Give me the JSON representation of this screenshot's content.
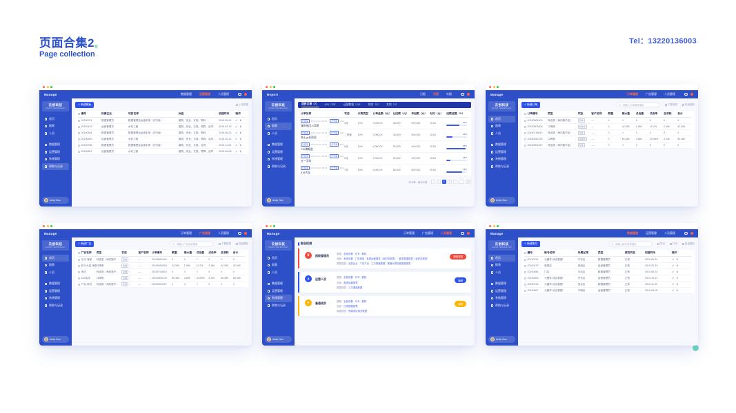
{
  "page": {
    "title": "页面合集2",
    "period": "。",
    "subtitle": "Page collection",
    "tel": "Tel：13220136003"
  },
  "shared": {
    "logo_name": "云创科技",
    "logo_sub": "CLOUD TECHNOLOGY",
    "sidebar": [
      "首页",
      "报表",
      "人员",
      "数据管理",
      "运营管理",
      "系统管理",
      "帮助与记录"
    ],
    "user": "Andy Guo",
    "colors": {
      "primary_blue": "#2d4fc8",
      "subtab_blue": "#2136a8",
      "accent_orange": "#ff6a45",
      "link_blue": "#3d5be0",
      "teal": "#6fd6c4",
      "role_red": "#f5483d",
      "role_blue": "#2f54eb",
      "role_yellow": "#ffb400"
    }
  },
  "w1": {
    "title": "Manage",
    "nav": [
      "数据管理",
      "运营管理",
      "人员管理"
    ],
    "new_btn": "新建模板",
    "upload_link": "上传数据",
    "columns": [
      "编号",
      "所属企业",
      "项目名称",
      "标签",
      "创建时间",
      "操作"
    ],
    "rows": [
      [
        "20190374",
        "数据管理员",
        "数据管理及运维手册（试行版）",
        "建筑、安全、文档、物料",
        "2019-05-24"
      ],
      [
        "20190479",
        "运营管理员",
        "水利工程",
        "建筑、安全、文档、预算、合同、自检",
        "2019-02-19"
      ],
      [
        "20190584",
        "数据管理员",
        "数据管理及运维手册（试行版）",
        "建筑、安全、文档、物料",
        "2019-08-23"
      ],
      [
        "20190693",
        "运营管理员",
        "水利工程",
        "建筑、安全、文档、预算、合同、自检",
        "2019-10-12"
      ],
      [
        "20190758",
        "数据管理员",
        "数据管理及运维手册（试行版）",
        "建筑、安全、文档、合同",
        "2019-11-09"
      ],
      [
        "20190867",
        "运营管理员",
        "水利工程",
        "建筑、安全、文档、预算、合同",
        "2019-09-08"
      ]
    ]
  },
  "w2": {
    "title": "Report",
    "nav": [
      "日报",
      "月报",
      "年报"
    ],
    "subtabs": [
      "项目订单（7）",
      "KPI（23）",
      "运营数据（15）",
      "财务（5）",
      "其他（3）"
    ],
    "columns": [
      "订单名称",
      "状态",
      "计费类型",
      "订单金额（元）",
      "已回款（元）",
      "未回款（元）",
      "毛利（元）",
      "回款进度（%）"
    ],
    "rows": [
      {
        "tag1": "已结束",
        "date1": "2019-04-24 08:00",
        "tag2": "已开票",
        "date2": "2019-07-05 09:30",
        "name": "城市快闪-5月期",
        "period": "4月",
        "rate": "12%",
        "amount": "3,000.00",
        "received": "36,000",
        "unreceived": "900,000",
        "profit": "10.00",
        "pct": 62,
        "pct_label": "62%"
      },
      {
        "tag1": "已结束",
        "date1": "2019-04-24 08:00",
        "tag2": "已开票",
        "date2": "2019-07-05 09:30",
        "name": "海上云仓项目",
        "period": "二季度",
        "rate": "12%",
        "amount": "3,000.00",
        "received": "36,000",
        "unreceived": "900,000",
        "profit": "10.00",
        "pct": 28,
        "pct_label": "28%"
      },
      {
        "tag1": "已结束",
        "date1": "2019-05-12 08:00",
        "tag2": "已开票",
        "date2": "2019-07-18 09:30",
        "name": "715演唱会",
        "period": "6月",
        "rate": "10%",
        "amount": "2,000.00",
        "received": "26,000",
        "unreceived": "400,000",
        "profit": "15.00",
        "pct": 95,
        "pct_label": "95%"
      },
      {
        "tag1": "已结束",
        "date1": "2019-05-01 08:00",
        "tag2": "已开票",
        "date2": "2019-07-20 09:30",
        "name": "五一活动",
        "period": "5月",
        "rate": "10%",
        "amount": "2,000.00",
        "received": "26,000",
        "unreceived": "400,000",
        "profit": "15.00",
        "pct": 18,
        "pct_label": "18%"
      },
      {
        "tag1": "已结束",
        "date1": "2019-06-18 08:00",
        "tag2": "已开票",
        "date2": "2019-07-28 09:30",
        "name": "618大促",
        "period": "7月",
        "rate": "15%",
        "amount": "5,000.00",
        "received": "56,000",
        "unreceived": "600,000",
        "profit": "20.00",
        "pct": 78,
        "pct_label": "78%"
      }
    ],
    "pager": {
      "summary": "共45条，每页10条",
      "pages": [
        "‹",
        "1",
        "2",
        "3",
        "›"
      ],
      "go": "Go"
    }
  },
  "w3": {
    "title": "Manage",
    "nav": [
      "订单管理",
      "广告管理",
      "人员管理"
    ],
    "new_btn": "新建订单",
    "search_placeholder": "请输入订单编号搜索",
    "links": [
      "下载报表",
      "批量删除"
    ],
    "columns": [
      "订单编号",
      "类型",
      "状态",
      "客户名称",
      "数量",
      "展示量",
      "点击量",
      "点击率",
      "总消耗",
      "合计"
    ],
    "rows": [
      [
        "20190501003",
        "科技类（海内数不定）",
        "暂停",
        "—",
        "0",
        "0",
        "0",
        "0",
        "0",
        "0"
      ],
      [
        "20190603004",
        "口碑类",
        "投放中",
        "—",
        "0",
        "42,380",
        "1,580",
        "10.2%",
        "2,180",
        "42,380"
      ],
      [
        "20190718010",
        "科技类（海内数不定）",
        "暂停",
        "—",
        "0",
        "0",
        "0",
        "0",
        "0",
        "0"
      ],
      [
        "20190830125",
        "口碑类",
        "投放中",
        "—",
        "0",
        "80,380",
        "3,680",
        "20.55%",
        "4,130",
        "80,380"
      ],
      [
        "20190904167",
        "科技类（海内数不定）",
        "暂停",
        "—",
        "0",
        "0",
        "0",
        "0",
        "0",
        "0"
      ]
    ]
  },
  "w4": {
    "title": "Manage",
    "nav": [
      "订单管理",
      "广告管理",
      "人员管理"
    ],
    "new_btn": "新建广告",
    "search_placeholder": "请输入广告名称搜索",
    "links": [
      "下载报表",
      "批量删除"
    ],
    "columns": [
      "广告名称",
      "类型",
      "状态",
      "客户名称",
      "订单编号",
      "数量",
      "展示量",
      "点击量",
      "点击率",
      "总消耗",
      "合计"
    ],
    "rows": [
      [
        "五月-海报",
        "科技类（海内数不定）",
        "投放",
        "暂停",
        "—",
        "20190501003",
        "0",
        "0",
        "0",
        "0",
        "0"
      ],
      [
        "双12大促-海报",
        "口碑类",
        "投放",
        "暂停",
        "—",
        "20190603004",
        "42,380",
        "1,580",
        "10.2%",
        "2,180",
        "42,380"
      ],
      [
        "测试",
        "科技类（海内数不定）",
        "投放",
        "暂停",
        "—",
        "20190718010",
        "0",
        "0",
        "0",
        "0",
        "0"
      ],
      [
        "618活动",
        "口碑类",
        "投放",
        "暂停",
        "—",
        "20190830125",
        "80,380",
        "3,680",
        "20.55%",
        "4,130",
        "80,380"
      ],
      [
        "广告-测试",
        "科技类（海内数不定）",
        "投放",
        "暂停",
        "—",
        "20190904167",
        "0",
        "0",
        "0",
        "0",
        "0"
      ]
    ]
  },
  "w5": {
    "title": "Manage",
    "nav": [
      "订单管理",
      "广告管理",
      "人员管理"
    ],
    "section_title": "角色权限",
    "cards": [
      {
        "icon": "♛",
        "name": "超级管理员",
        "color": "#f5483d",
        "l1_label": "数据：",
        "l1": "全部查看 · 可写 · 删除",
        "l2_label": "页面：",
        "l2": "系统设置 · 广告投放 · 各类运营报表（含财务报表） · 各类数据报表（含财务报表）",
        "l3_label": "数据范围：",
        "l3": "全部企业 · 广告平台 · 三方渠道数据 · 渠道大屏及各数据报表",
        "btn": "删除权限"
      },
      {
        "icon": "▲",
        "name": "运营人员",
        "color": "#2f54eb",
        "l1_label": "数据：",
        "l1": "全部查看 · 可写 · 删除",
        "l2_label": "页面：",
        "l2": "各类运营报表",
        "l3_label": "数据范围：",
        "l3": "三方渠道数据",
        "btn": "编辑"
      },
      {
        "icon": "★",
        "name": "普通成员",
        "color": "#ffb400",
        "l1_label": "数据：",
        "l1": "全部查看 · 可写 · 删除",
        "l2_label": "页面：",
        "l2": "日常数据报表",
        "l3_label": "数据范围：",
        "l3": "所属项目相关数据",
        "btn": "编辑"
      }
    ]
  },
  "w6": {
    "title": "Manage",
    "nav": [
      "数据管理",
      "运营管理",
      "人员管理"
    ],
    "new_btn": "新建账号",
    "search_placeholder": "请输入账号名称搜索",
    "links": [
      "导出",
      "打印",
      "批量删除"
    ],
    "columns": [
      "编号",
      "账号名称",
      "所属区域",
      "类型",
      "使用状态",
      "创建时间",
      "操作"
    ],
    "rows": [
      [
        "20190374",
        "元器件-综合数据*",
        "华东区",
        "数据管理员",
        "正常",
        "2019-05-24"
      ],
      [
        "20190479",
        "鼓楼店",
        "西南区",
        "运营管理员",
        "正常",
        "2019-02-19"
      ],
      [
        "20190584",
        "门店",
        "华北区",
        "数据管理员",
        "正常",
        "2019-08-23"
      ],
      [
        "20190693",
        "元器件-综合数据*",
        "华东区",
        "运营管理员",
        "正常",
        "2019-10-12"
      ],
      [
        "20190758",
        "元器件-综合数据*",
        "西北区",
        "数据管理员",
        "正常",
        "2019-11-09"
      ],
      [
        "20190867",
        "元器件-综合数据*",
        "华南区",
        "运营管理员",
        "正常",
        "2019-09-08"
      ]
    ]
  }
}
